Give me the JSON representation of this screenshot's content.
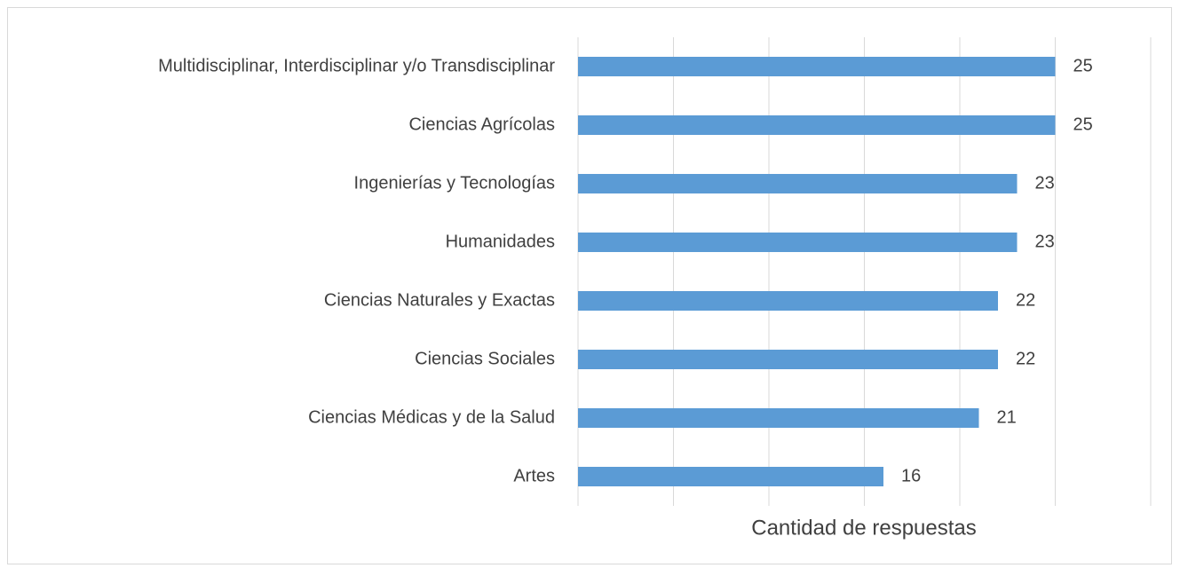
{
  "chart_data": {
    "type": "bar",
    "orientation": "horizontal",
    "x_label": "Cantidad de respuestas",
    "categories": [
      "Multidisciplinar, Interdisciplinar y/o Transdisciplinar",
      "Ciencias Agrícolas",
      "Ingenierías y Tecnologías",
      "Humanidades",
      "Ciencias Naturales y Exactas",
      "Ciencias Sociales",
      "Ciencias Médicas y de la Salud",
      "Artes"
    ],
    "values": [
      25,
      25,
      23,
      23,
      22,
      22,
      21,
      16
    ],
    "color": "#5b9bd5",
    "xlim": [
      0,
      30
    ],
    "xticks": [
      0,
      5,
      10,
      15,
      20,
      25,
      30
    ],
    "grid": true
  }
}
